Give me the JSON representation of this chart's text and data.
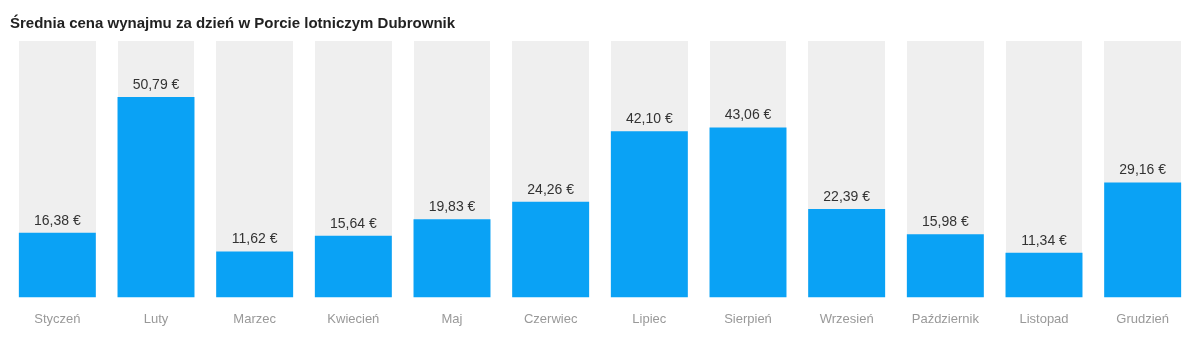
{
  "chart_data": {
    "type": "bar",
    "title": "Średnia cena wynajmu za dzień w Porcie lotniczym Dubrownik",
    "categories": [
      "Styczeń",
      "Luty",
      "Marzec",
      "Kwiecień",
      "Maj",
      "Czerwiec",
      "Lipiec",
      "Sierpień",
      "Wrzesień",
      "Październik",
      "Listopad",
      "Grudzień"
    ],
    "values": [
      16.38,
      50.79,
      11.62,
      15.64,
      19.83,
      24.26,
      42.1,
      43.06,
      22.39,
      15.98,
      11.34,
      29.16
    ],
    "value_labels": [
      "16,38 €",
      "50,79 €",
      "11,62 €",
      "15,64 €",
      "19,83 €",
      "24,26 €",
      "42,10 €",
      "43,06 €",
      "22,39 €",
      "15,98 €",
      "11,34 €",
      "29,16 €"
    ],
    "color": "#0aa2f5",
    "ylim": [
      0,
      65
    ],
    "grid": false,
    "legend": false
  }
}
